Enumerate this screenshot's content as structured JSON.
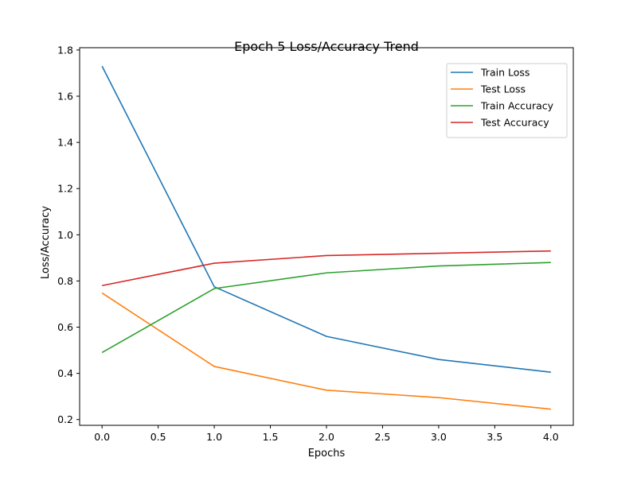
{
  "chart_data": {
    "type": "line",
    "title": "Epoch 5 Loss/Accuracy Trend",
    "xlabel": "Epochs",
    "ylabel": "Loss/Accuracy",
    "x": [
      0,
      1,
      2,
      3,
      4
    ],
    "xlim": [
      -0.2,
      4.2
    ],
    "ylim": [
      0.175,
      1.81
    ],
    "x_ticks": [
      0.0,
      0.5,
      1.0,
      1.5,
      2.0,
      2.5,
      3.0,
      3.5,
      4.0
    ],
    "x_tick_labels": [
      "0.0",
      "0.5",
      "1.0",
      "1.5",
      "2.0",
      "2.5",
      "3.0",
      "3.5",
      "4.0"
    ],
    "y_ticks": [
      0.2,
      0.4,
      0.6,
      0.8,
      1.0,
      1.2,
      1.4,
      1.6,
      1.8
    ],
    "y_tick_labels": [
      "0.2",
      "0.4",
      "0.6",
      "0.8",
      "1.0",
      "1.2",
      "1.4",
      "1.6",
      "1.8"
    ],
    "grid": false,
    "legend_position": "top-right",
    "series": [
      {
        "name": "Train Loss",
        "color": "#1f77b4",
        "values": [
          1.73,
          0.775,
          0.56,
          0.46,
          0.405
        ]
      },
      {
        "name": "Test Loss",
        "color": "#ff7f0e",
        "values": [
          0.748,
          0.43,
          0.327,
          0.295,
          0.245
        ]
      },
      {
        "name": "Train Accuracy",
        "color": "#2ca02c",
        "values": [
          0.49,
          0.767,
          0.835,
          0.865,
          0.88
        ]
      },
      {
        "name": "Test Accuracy",
        "color": "#d62728",
        "values": [
          0.78,
          0.877,
          0.91,
          0.92,
          0.93
        ]
      }
    ]
  }
}
